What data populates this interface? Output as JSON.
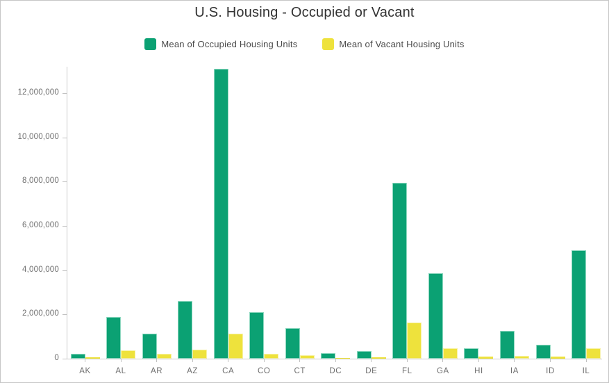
{
  "chart_data": {
    "type": "bar",
    "title": "U.S. Housing - Occupied or Vacant",
    "categories": [
      "AK",
      "AL",
      "AR",
      "AZ",
      "CA",
      "CO",
      "CT",
      "DC",
      "DE",
      "FL",
      "GA",
      "HI",
      "IA",
      "ID",
      "IL"
    ],
    "series": [
      {
        "name": "Mean of Occupied Housing Units",
        "color": "#0ba173",
        "edge_color": "#8fd8c0",
        "values": [
          220000,
          1870000,
          1130000,
          2620000,
          13100000,
          2120000,
          1370000,
          255000,
          345000,
          7940000,
          3850000,
          465000,
          1270000,
          615000,
          4890000
        ]
      },
      {
        "name": "Mean of Vacant Housing Units",
        "color": "#eee23c",
        "edge_color": "#f7f1a4",
        "values": [
          65000,
          380000,
          205000,
          410000,
          1120000,
          225000,
          170000,
          40000,
          70000,
          1620000,
          470000,
          95000,
          140000,
          95000,
          480000
        ]
      }
    ],
    "xlabel": "",
    "ylabel": "",
    "ylim": [
      0,
      13200000
    ],
    "y_ticks": [
      {
        "value": 0,
        "label": "0"
      },
      {
        "value": 2000000,
        "label": "2,000,000"
      },
      {
        "value": 4000000,
        "label": "4,000,000"
      },
      {
        "value": 6000000,
        "label": "6,000,000"
      },
      {
        "value": 8000000,
        "label": "8,000,000"
      },
      {
        "value": 10000000,
        "label": "10,000,000"
      },
      {
        "value": 12000000,
        "label": "12,000,000"
      }
    ],
    "legend_position": "top",
    "grid": false
  }
}
